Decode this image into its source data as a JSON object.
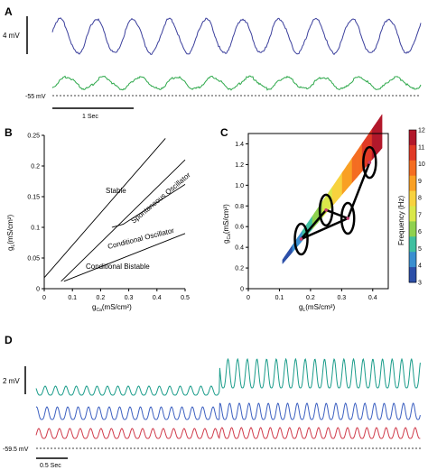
{
  "panels": {
    "a": {
      "letter": "A",
      "scale_label": "4 mV",
      "baseline_label": "-55 mV",
      "time_label": "1 Sec",
      "colors": {
        "blue_trace": "#3b3f9c",
        "green_trace": "#2da84a"
      }
    },
    "b": {
      "letter": "B",
      "xlabel": "g",
      "xlabel_sub": "Ca",
      "xlabel_unit": "(mS/cm²)",
      "ylabel": "g",
      "ylabel_sub": "L",
      "ylabel_unit": "(mS/cm²)",
      "x_ticks": [
        "0",
        "0.1",
        "0.2",
        "0.3",
        "0.4",
        "0.5"
      ],
      "y_ticks": [
        "0",
        "0.05",
        "0.1",
        "0.15",
        "0.2",
        "0.25"
      ],
      "regions": {
        "stable": "Stable",
        "spontaneous": "Spontaneous Oscillator",
        "conditional_osc": "Conditional Oscillator",
        "conditional_bistable": "Conditional Bistable"
      }
    },
    "c": {
      "letter": "C",
      "xlabel": "g",
      "xlabel_sub": "L",
      "xlabel_unit": "(mS/cm²)",
      "ylabel": "g",
      "ylabel_sub": "Ca",
      "ylabel_unit": "(mS/cm²)",
      "x_ticks": [
        "0",
        "0.1",
        "0.2",
        "0.3",
        "0.4"
      ],
      "y_ticks": [
        "0",
        "0.2",
        "0.4",
        "0.6",
        "0.8",
        "1.0",
        "1.2",
        "1.4"
      ],
      "colorbar_label": "Frequency (Hz)",
      "colorbar_ticks": [
        "12",
        "11",
        "10",
        "9",
        "8",
        "7",
        "6",
        "5",
        "4",
        "3"
      ],
      "colorbar_colors": [
        "#b2182b",
        "#e03a26",
        "#f46d22",
        "#f9a024",
        "#f7d23e",
        "#d9e84a",
        "#8fd14f",
        "#3fbfa0",
        "#3a8fd0",
        "#2c4fa8"
      ]
    },
    "d": {
      "letter": "D",
      "scale_label": "2 mV",
      "baseline_label": "-59.5 mV",
      "time_label": "0.5 Sec",
      "colors": {
        "teal": "#1a9c8a",
        "blue": "#3b5fc0",
        "red": "#d03a4a"
      }
    }
  },
  "chart_data": [
    {
      "type": "line",
      "title": "",
      "description_series": [
        {
          "name": "",
          "kind": "sinusoid",
          "period_s": 0.4,
          "amplitude_mV": 4
        },
        {
          "name": "",
          "kind": "sinusoid",
          "period_s": 0.4,
          "amplitude_mV": 1.5
        }
      ]
    },
    {
      "type": "line",
      "xlabel": "gCa(mS/cm²)",
      "ylabel": "gL(mS/cm²)",
      "xlim": [
        0,
        0.5
      ],
      "ylim": [
        0,
        0.25
      ],
      "series": [
        {
          "name": "",
          "x": [
            0.0,
            0.43
          ],
          "y": [
            0.018,
            0.245
          ]
        },
        {
          "name": "",
          "x": [
            0.06,
            0.5
          ],
          "y": [
            0.012,
            0.21
          ]
        },
        {
          "name": "",
          "x": [
            0.24,
            0.28,
            0.5
          ],
          "y": [
            0.1,
            0.105,
            0.17
          ]
        },
        {
          "name": "",
          "x": [
            0.07,
            0.5
          ],
          "y": [
            0.012,
            0.09
          ]
        }
      ]
    },
    {
      "type": "heatmap",
      "xlabel": "gL(mS/cm²)",
      "ylabel": "gCa(mS/cm²)",
      "xlim": [
        0,
        0.45
      ],
      "ylim": [
        0,
        1.5
      ],
      "colorbar_range": [
        3,
        12
      ],
      "highlighted_points": [
        {
          "x": 0.17,
          "y": 0.48
        },
        {
          "x": 0.25,
          "y": 0.76
        },
        {
          "x": 0.32,
          "y": 0.68
        },
        {
          "x": 0.39,
          "y": 1.22
        }
      ]
    },
    {
      "type": "line",
      "title": "",
      "series": [
        {
          "name": "",
          "kind": "oscillation"
        },
        {
          "name": "",
          "kind": "oscillation"
        },
        {
          "name": "",
          "kind": "oscillation"
        }
      ]
    }
  ]
}
